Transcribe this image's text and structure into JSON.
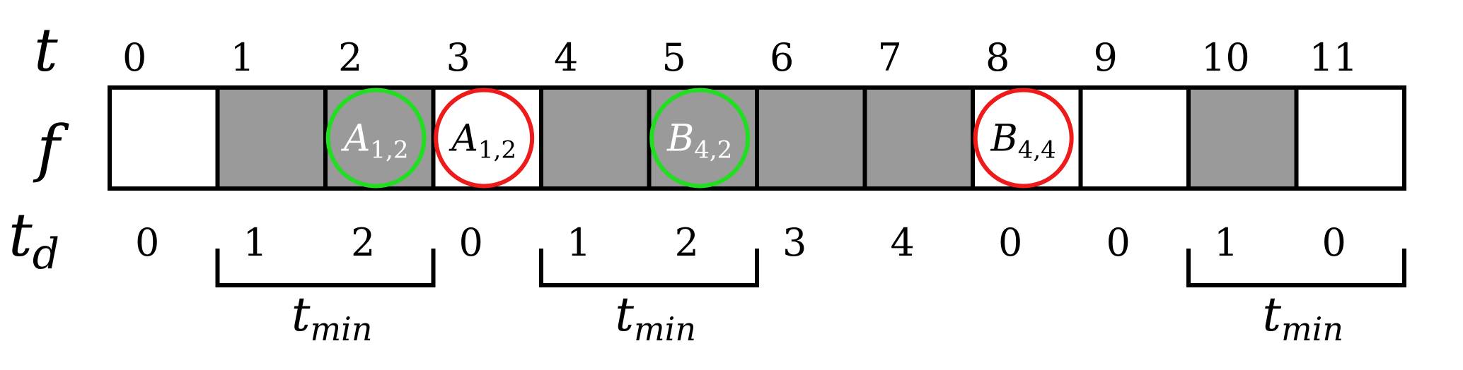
{
  "rows": {
    "t_label": "t",
    "f_label": "f",
    "td_label": "t",
    "td_sub": "d"
  },
  "t_values": [
    "0",
    "1",
    "2",
    "3",
    "4",
    "5",
    "6",
    "7",
    "8",
    "9",
    "10",
    "11"
  ],
  "td_values": [
    "0",
    "1",
    "2",
    "0",
    "1",
    "2",
    "3",
    "4",
    "0",
    "0",
    "1",
    "0"
  ],
  "cells": [
    {
      "state": "empty"
    },
    {
      "state": "filled"
    },
    {
      "state": "filled",
      "marker": {
        "main": "A",
        "sub": "1,2",
        "color": "#22dd22"
      }
    },
    {
      "state": "empty",
      "marker": {
        "main": "A",
        "sub": "1,2",
        "color": "#ee1b1b"
      }
    },
    {
      "state": "filled"
    },
    {
      "state": "filled",
      "marker": {
        "main": "B",
        "sub": "4,2",
        "color": "#22dd22"
      }
    },
    {
      "state": "filled"
    },
    {
      "state": "filled"
    },
    {
      "state": "empty",
      "marker": {
        "main": "B",
        "sub": "4,4",
        "color": "#ee1b1b"
      }
    },
    {
      "state": "empty"
    },
    {
      "state": "filled"
    },
    {
      "state": "empty"
    }
  ],
  "brackets": [
    {
      "from": 1,
      "to": 2,
      "label": "t",
      "sub": "min"
    },
    {
      "from": 4,
      "to": 5,
      "label": "t",
      "sub": "min"
    },
    {
      "from": 10,
      "to": 11,
      "label": "t",
      "sub": "min"
    }
  ],
  "colors": {
    "filled": "#9a9a9a",
    "empty": "#ffffff",
    "marker_text_on_filled": "#ffffff",
    "marker_text_on_empty": "#000000"
  }
}
